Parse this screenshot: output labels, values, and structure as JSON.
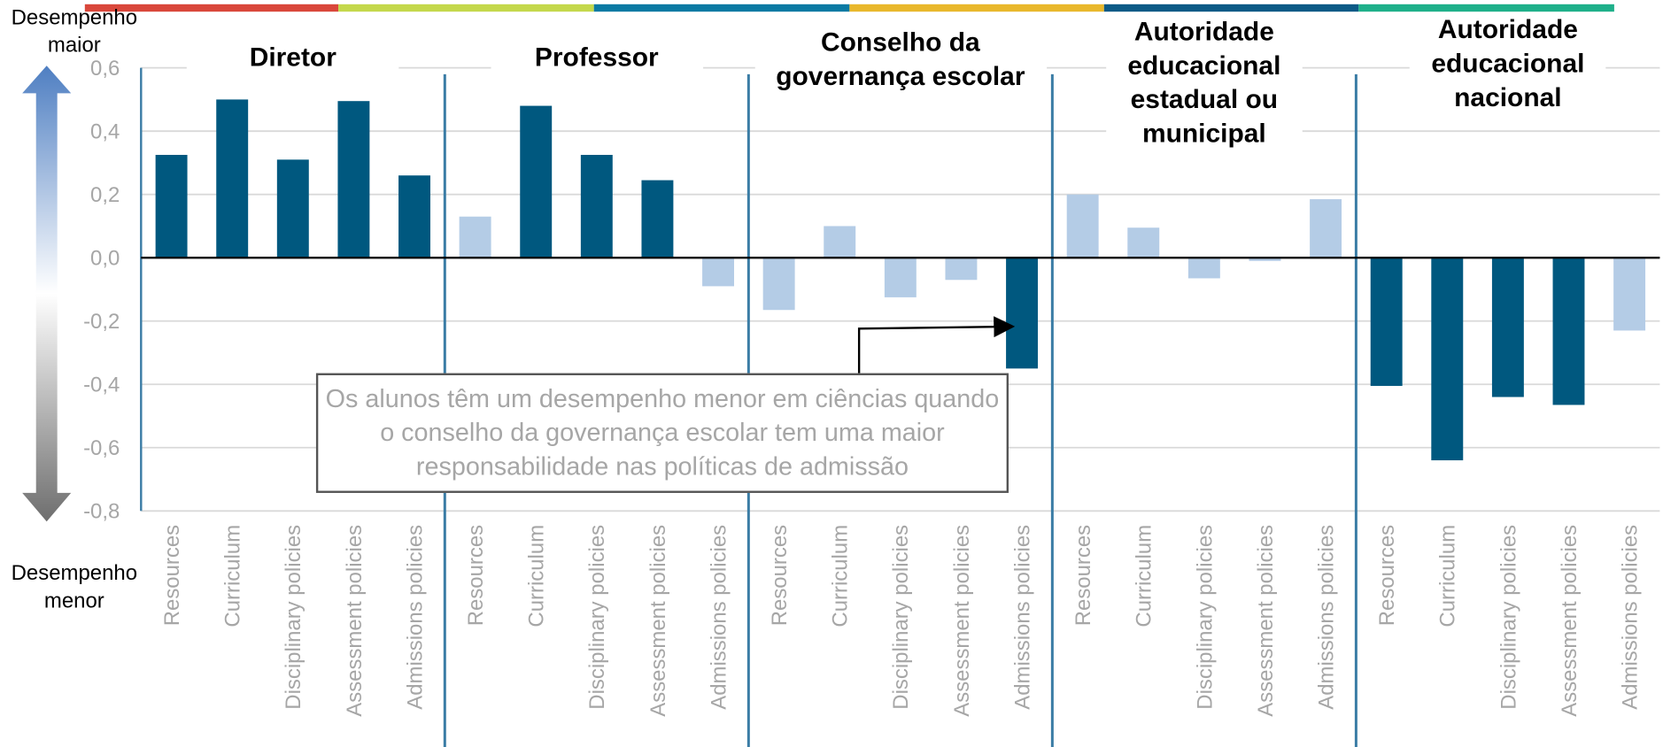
{
  "chart_data": {
    "type": "bar",
    "side_label_top": "Desempenho maior",
    "side_label_bottom": "Desempenho menor",
    "annotation": "Os alunos têm um desempenho menor em ciências quando o conselho da governança escolar tem uma maior responsabilidade nas políticas de admissão",
    "categories": [
      "Resources",
      "Curriculum",
      "Disciplinary policies",
      "Assessment policies",
      "Admissions policies"
    ],
    "groups": [
      {
        "name": "Diretor",
        "values": [
          0.325,
          0.5,
          0.31,
          0.495,
          0.26
        ],
        "colors": [
          "#00587f",
          "#00587f",
          "#00587f",
          "#00587f",
          "#00587f"
        ]
      },
      {
        "name": "Professor",
        "values": [
          0.13,
          0.48,
          0.325,
          0.245,
          -0.09
        ],
        "colors": [
          "#b4cce6",
          "#00587f",
          "#00587f",
          "#00587f",
          "#b4cce6"
        ]
      },
      {
        "name": "Conselho da governança escolar",
        "values": [
          -0.165,
          0.1,
          -0.125,
          -0.07,
          -0.35
        ],
        "colors": [
          "#b4cce6",
          "#b4cce6",
          "#b4cce6",
          "#b4cce6",
          "#00587f"
        ]
      },
      {
        "name": "Autoridade educacional estadual ou municipal",
        "values": [
          0.2,
          0.095,
          -0.065,
          -0.01,
          0.185
        ],
        "colors": [
          "#b4cce6",
          "#b4cce6",
          "#b4cce6",
          "#b4cce6",
          "#b4cce6"
        ]
      },
      {
        "name": "Autoridade educacional nacional",
        "values": [
          -0.405,
          -0.64,
          -0.44,
          -0.465,
          -0.23
        ],
        "colors": [
          "#00587f",
          "#00587f",
          "#00587f",
          "#00587f",
          "#b4cce6"
        ]
      }
    ],
    "ylim": [
      -0.8,
      0.6
    ],
    "yticks": [
      {
        "value": -0.8,
        "label": "-0,8"
      },
      {
        "value": -0.6,
        "label": "-0,6"
      },
      {
        "value": -0.4,
        "label": "-0,4"
      },
      {
        "value": -0.2,
        "label": "-0,2"
      },
      {
        "value": 0,
        "label": "0,0"
      },
      {
        "value": 0.2,
        "label": "0,2"
      },
      {
        "value": 0.4,
        "label": "0,4"
      },
      {
        "value": 0.6,
        "label": "0,6"
      }
    ],
    "grid": true
  }
}
